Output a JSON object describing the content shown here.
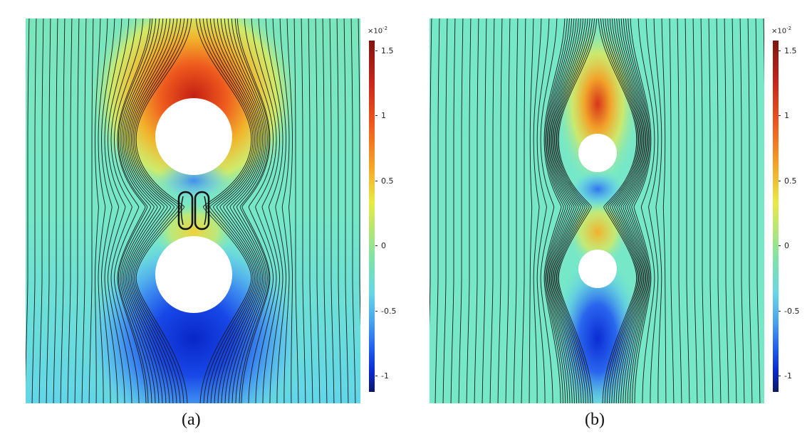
{
  "panels": [
    {
      "caption": "(a)",
      "colorbar": {
        "multiplier": "×10",
        "exponent": "-2",
        "ticks": [
          "1.5",
          "1",
          "0.5",
          "0",
          "-0.5",
          "-1"
        ]
      }
    },
    {
      "caption": "(b)",
      "colorbar": {
        "multiplier": "×10",
        "exponent": "-2",
        "ticks": [
          "1.5",
          "1",
          "0.5",
          "0",
          "-0.5",
          "-1"
        ]
      }
    }
  ],
  "colorscale": {
    "min": -1.15,
    "max": 1.6,
    "stops": [
      "#7f1610",
      "#c8261b",
      "#ee5a1e",
      "#f6a628",
      "#e9ea45",
      "#7fe3a6",
      "#68d6e6",
      "#4aa3ee",
      "#1f5cf0",
      "#0a2ad0",
      "#0c1766"
    ]
  },
  "field_background": "#76e8c8",
  "streamline_color": "#1a1a1a"
}
